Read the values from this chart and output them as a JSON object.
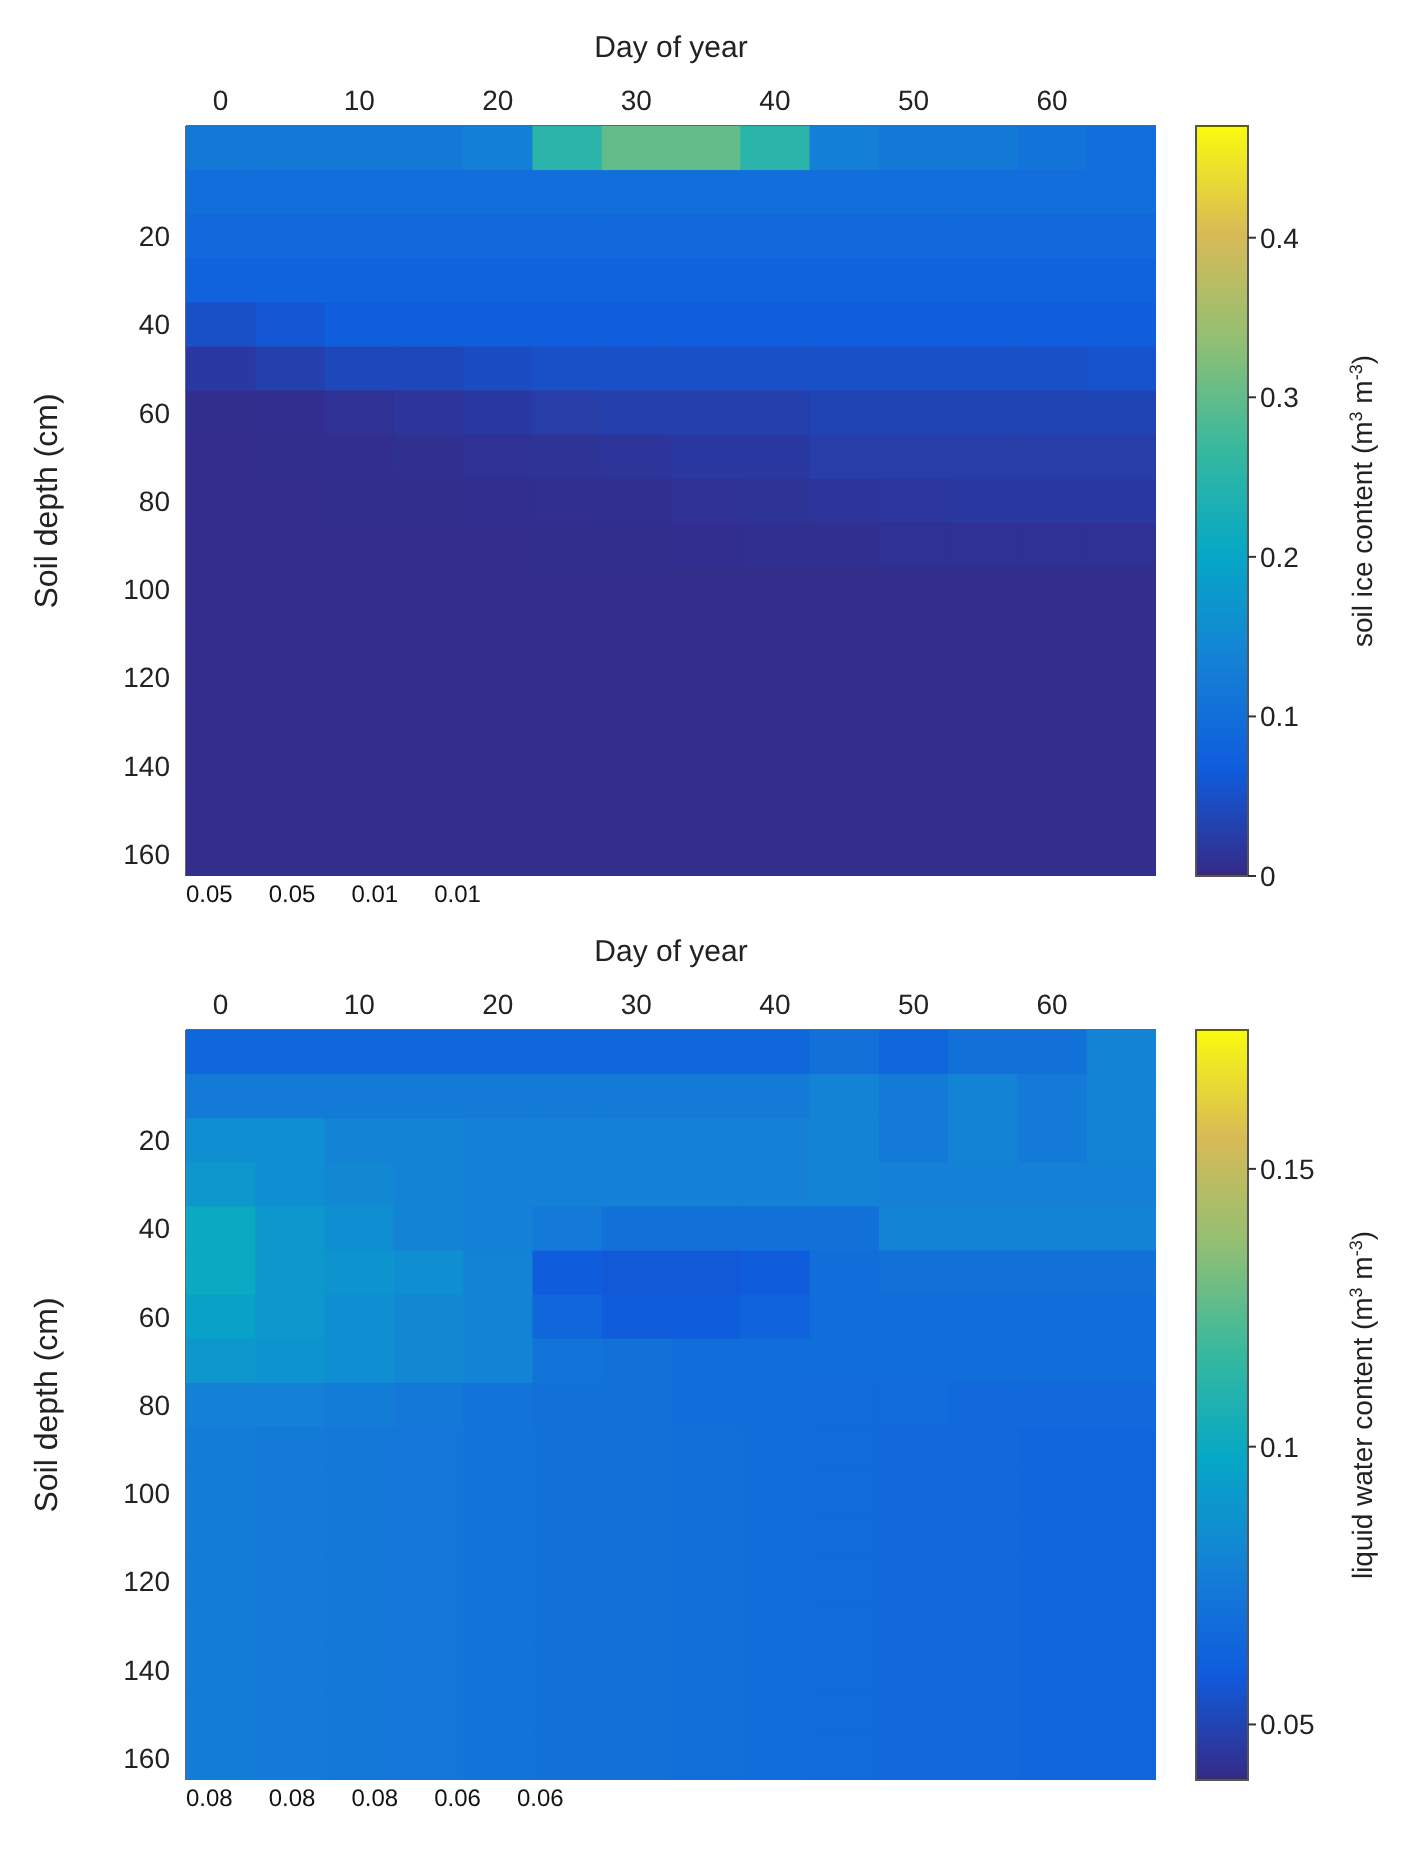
{
  "chart_data": [
    {
      "type": "heatmap",
      "xlabel": "Day of year",
      "ylabel": "Soil depth (cm)",
      "clabel": "soil ice content (m$^{3}$ m$^{-3}$)",
      "categories": [
        "0",
        null,
        "10",
        null,
        "20",
        null,
        "30",
        null,
        "40",
        null,
        "50",
        null,
        "60",
        null
      ],
      "y_categories": [
        null,
        null,
        "20",
        null,
        "40",
        null,
        "60",
        null,
        "80",
        null,
        "100",
        null,
        "120",
        null,
        "140",
        null,
        "160"
      ],
      "clim": [
        0,
        0.47
      ],
      "cticks": [
        0,
        0.1,
        0.2,
        0.3,
        0.4
      ],
      "cells": [
        [
          0.12,
          0.12,
          0.12,
          0.12,
          0.13,
          0.25,
          0.3,
          0.3,
          0.25,
          0.13,
          0.12,
          0.12,
          0.11,
          0.1
        ],
        [
          0.1,
          0.1,
          0.1,
          0.1,
          0.1,
          0.1,
          0.1,
          0.1,
          0.1,
          0.1,
          0.1,
          0.1,
          0.1,
          0.1
        ],
        [
          0.09,
          0.09,
          0.09,
          0.09,
          0.09,
          0.09,
          0.09,
          0.09,
          0.09,
          0.09,
          0.09,
          0.09,
          0.09,
          0.09
        ],
        [
          0.08,
          0.08,
          0.08,
          0.08,
          0.08,
          0.08,
          0.08,
          0.08,
          0.08,
          0.08,
          0.08,
          0.08,
          0.08,
          0.08
        ],
        [
          0.05,
          0.06,
          0.07,
          0.07,
          0.07,
          0.07,
          0.07,
          0.07,
          0.07,
          0.07,
          0.07,
          0.07,
          0.07,
          0.07
        ],
        [
          0.02,
          0.03,
          0.04,
          0.04,
          0.045,
          0.05,
          0.05,
          0.05,
          0.05,
          0.05,
          0.05,
          0.05,
          0.05,
          0.055
        ],
        [
          0.005,
          0.006,
          0.01,
          0.015,
          0.02,
          0.025,
          0.03,
          0.03,
          0.03,
          0.035,
          0.035,
          0.035,
          0.035,
          0.035
        ],
        [
          0.004,
          0.005,
          0.006,
          0.008,
          0.01,
          0.012,
          0.015,
          0.02,
          0.02,
          0.025,
          0.025,
          0.025,
          0.025,
          0.025
        ],
        [
          0.004,
          0.004,
          0.005,
          0.005,
          0.006,
          0.007,
          0.008,
          0.01,
          0.012,
          0.015,
          0.018,
          0.02,
          0.02,
          0.02
        ],
        [
          0.004,
          0.004,
          0.004,
          0.004,
          0.004,
          0.005,
          0.005,
          0.006,
          0.007,
          0.008,
          0.01,
          0.01,
          0.01,
          0.01
        ],
        [
          0.004,
          0.004,
          0.004,
          0.004,
          0.004,
          0.004,
          0.004,
          0.004,
          0.004,
          0.004,
          0.004,
          0.004,
          0.004,
          0.004
        ],
        [
          0.004,
          0.004,
          0.004,
          0.004,
          0.004,
          0.004,
          0.004,
          0.004,
          0.004,
          0.004,
          0.004,
          0.004,
          0.004,
          0.004
        ],
        [
          0.004,
          0.004,
          0.004,
          0.004,
          0.004,
          0.004,
          0.004,
          0.004,
          0.004,
          0.004,
          0.004,
          0.004,
          0.004,
          0.004
        ],
        [
          0.004,
          0.004,
          0.004,
          0.004,
          0.004,
          0.004,
          0.004,
          0.004,
          0.004,
          0.004,
          0.004,
          0.004,
          0.004,
          0.004
        ],
        [
          0.004,
          0.004,
          0.004,
          0.004,
          0.004,
          0.004,
          0.004,
          0.004,
          0.004,
          0.004,
          0.004,
          0.004,
          0.004,
          0.004
        ],
        [
          0.004,
          0.004,
          0.004,
          0.004,
          0.004,
          0.004,
          0.004,
          0.004,
          0.004,
          0.004,
          0.004,
          0.004,
          0.004,
          0.004
        ],
        [
          0.004,
          0.004,
          0.004,
          0.004,
          0.004,
          0.004,
          0.004,
          0.004,
          0.004,
          0.004,
          0.004,
          0.004,
          0.004,
          0.004
        ]
      ],
      "annotations": [
        "0.05",
        "0.05",
        "0.01",
        "0.01"
      ]
    },
    {
      "type": "heatmap",
      "xlabel": "Day of year",
      "ylabel": "Soil depth (cm)",
      "clabel": "liquid water content (m$^{3}$ m$^{-3}$)",
      "categories": [
        "0",
        null,
        "10",
        null,
        "20",
        null,
        "30",
        null,
        "40",
        null,
        "50",
        null,
        "60",
        null
      ],
      "y_categories": [
        null,
        null,
        "20",
        null,
        "40",
        null,
        "60",
        null,
        "80",
        null,
        "100",
        null,
        "120",
        null,
        "140",
        null,
        "160"
      ],
      "clim": [
        0.04,
        0.175
      ],
      "cticks": [
        0.05,
        0.1,
        0.15
      ],
      "cells": [
        [
          0.065,
          0.065,
          0.065,
          0.065,
          0.065,
          0.065,
          0.065,
          0.065,
          0.065,
          0.07,
          0.065,
          0.07,
          0.07,
          0.08
        ],
        [
          0.075,
          0.075,
          0.075,
          0.075,
          0.075,
          0.075,
          0.075,
          0.075,
          0.075,
          0.08,
          0.075,
          0.08,
          0.075,
          0.08
        ],
        [
          0.085,
          0.085,
          0.08,
          0.08,
          0.078,
          0.078,
          0.078,
          0.078,
          0.078,
          0.08,
          0.075,
          0.08,
          0.075,
          0.08
        ],
        [
          0.09,
          0.085,
          0.082,
          0.08,
          0.078,
          0.078,
          0.078,
          0.078,
          0.078,
          0.08,
          0.078,
          0.078,
          0.078,
          0.078
        ],
        [
          0.1,
          0.09,
          0.085,
          0.08,
          0.078,
          0.075,
          0.07,
          0.07,
          0.07,
          0.07,
          0.08,
          0.08,
          0.08,
          0.08
        ],
        [
          0.1,
          0.09,
          0.088,
          0.085,
          0.08,
          0.06,
          0.058,
          0.058,
          0.06,
          0.068,
          0.07,
          0.07,
          0.07,
          0.07
        ],
        [
          0.095,
          0.09,
          0.085,
          0.082,
          0.08,
          0.065,
          0.06,
          0.06,
          0.063,
          0.068,
          0.068,
          0.068,
          0.068,
          0.068
        ],
        [
          0.09,
          0.088,
          0.085,
          0.082,
          0.08,
          0.072,
          0.07,
          0.068,
          0.068,
          0.068,
          0.068,
          0.068,
          0.068,
          0.068
        ],
        [
          0.078,
          0.078,
          0.076,
          0.074,
          0.072,
          0.07,
          0.07,
          0.068,
          0.068,
          0.067,
          0.067,
          0.066,
          0.066,
          0.066
        ],
        [
          0.076,
          0.075,
          0.074,
          0.073,
          0.072,
          0.071,
          0.07,
          0.069,
          0.068,
          0.067,
          0.066,
          0.066,
          0.065,
          0.065
        ],
        [
          0.076,
          0.075,
          0.074,
          0.073,
          0.072,
          0.071,
          0.07,
          0.069,
          0.068,
          0.067,
          0.066,
          0.066,
          0.065,
          0.065
        ],
        [
          0.076,
          0.075,
          0.074,
          0.073,
          0.072,
          0.071,
          0.07,
          0.069,
          0.068,
          0.067,
          0.066,
          0.066,
          0.065,
          0.065
        ],
        [
          0.076,
          0.075,
          0.074,
          0.073,
          0.072,
          0.071,
          0.07,
          0.069,
          0.068,
          0.067,
          0.066,
          0.066,
          0.065,
          0.065
        ],
        [
          0.076,
          0.075,
          0.074,
          0.073,
          0.072,
          0.071,
          0.07,
          0.069,
          0.068,
          0.067,
          0.066,
          0.066,
          0.065,
          0.065
        ],
        [
          0.076,
          0.075,
          0.074,
          0.073,
          0.072,
          0.071,
          0.07,
          0.069,
          0.068,
          0.067,
          0.066,
          0.066,
          0.065,
          0.065
        ],
        [
          0.076,
          0.075,
          0.074,
          0.073,
          0.072,
          0.071,
          0.07,
          0.069,
          0.068,
          0.067,
          0.066,
          0.066,
          0.065,
          0.065
        ],
        [
          0.076,
          0.075,
          0.074,
          0.073,
          0.072,
          0.071,
          0.07,
          0.069,
          0.068,
          0.067,
          0.066,
          0.066,
          0.065,
          0.065
        ]
      ],
      "annotations": [
        "0.08",
        "0.08",
        "0.08",
        "0.06",
        "0.06"
      ]
    }
  ]
}
